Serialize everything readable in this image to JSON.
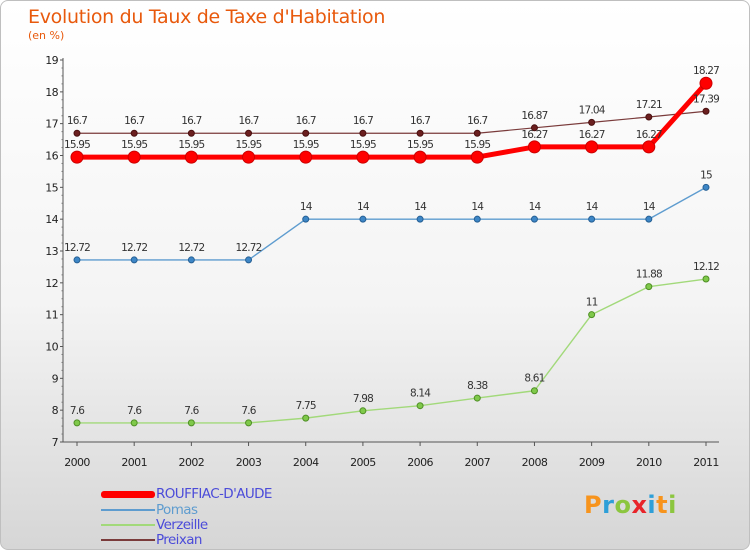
{
  "title": "Evolution du Taux de Taxe d'Habitation",
  "unit_label": "(en %)",
  "logo": [
    "P",
    "r",
    "o",
    "x",
    "i",
    "t",
    "i"
  ],
  "logo_colors": [
    "#f7941d",
    "#2e9fd8",
    "#8cc63f",
    "#e8242a",
    "#2e9fd8",
    "#f7941d",
    "#8cc63f"
  ],
  "chart_data": {
    "type": "line",
    "x": [
      2000,
      2001,
      2002,
      2003,
      2004,
      2005,
      2006,
      2007,
      2008,
      2009,
      2010,
      2011
    ],
    "ylim": [
      7,
      19
    ],
    "yticks": [
      7,
      8,
      9,
      10,
      11,
      12,
      13,
      14,
      15,
      16,
      17,
      18,
      19
    ],
    "grid": false,
    "legend_position": "bottom-left",
    "series": [
      {
        "name": "ROUFFIAC-D'AUDE",
        "color": "#ff0000",
        "values": [
          15.95,
          15.95,
          15.95,
          15.95,
          15.95,
          15.95,
          15.95,
          15.95,
          16.27,
          16.27,
          16.27,
          18.27
        ],
        "labels": [
          "15.95",
          "15.95",
          "15.95",
          "15.95",
          "15.95",
          "15.95",
          "15.95",
          "15.95",
          "16.27",
          "16.27",
          "16.27",
          "18.27"
        ]
      },
      {
        "name": "Pomas",
        "color": "#5e9ccf",
        "values": [
          12.72,
          12.72,
          12.72,
          12.72,
          14,
          14,
          14,
          14,
          14,
          14,
          14,
          15
        ],
        "labels": [
          "12.72",
          "12.72",
          "12.72",
          "12.72",
          "14",
          "14",
          "14",
          "14",
          "14",
          "14",
          "14",
          "15"
        ]
      },
      {
        "name": "Verzeille",
        "color": "#a2d97a",
        "values": [
          7.6,
          7.6,
          7.6,
          7.6,
          7.75,
          7.98,
          8.14,
          8.38,
          8.61,
          11,
          11.88,
          12.12
        ],
        "labels": [
          "7.6",
          "7.6",
          "7.6",
          "7.6",
          "7.75",
          "7.98",
          "8.14",
          "8.38",
          "8.61",
          "11",
          "11.88",
          "12.12"
        ]
      },
      {
        "name": "Preixan",
        "color": "#7a3b3b",
        "values": [
          16.7,
          16.7,
          16.7,
          16.7,
          16.7,
          16.7,
          16.7,
          16.7,
          16.87,
          17.04,
          17.21,
          17.39
        ],
        "labels": [
          "16.7",
          "16.7",
          "16.7",
          "16.7",
          "16.7",
          "16.7",
          "16.7",
          "16.7",
          "16.87",
          "17.04",
          "17.21",
          "17.39"
        ]
      }
    ]
  }
}
